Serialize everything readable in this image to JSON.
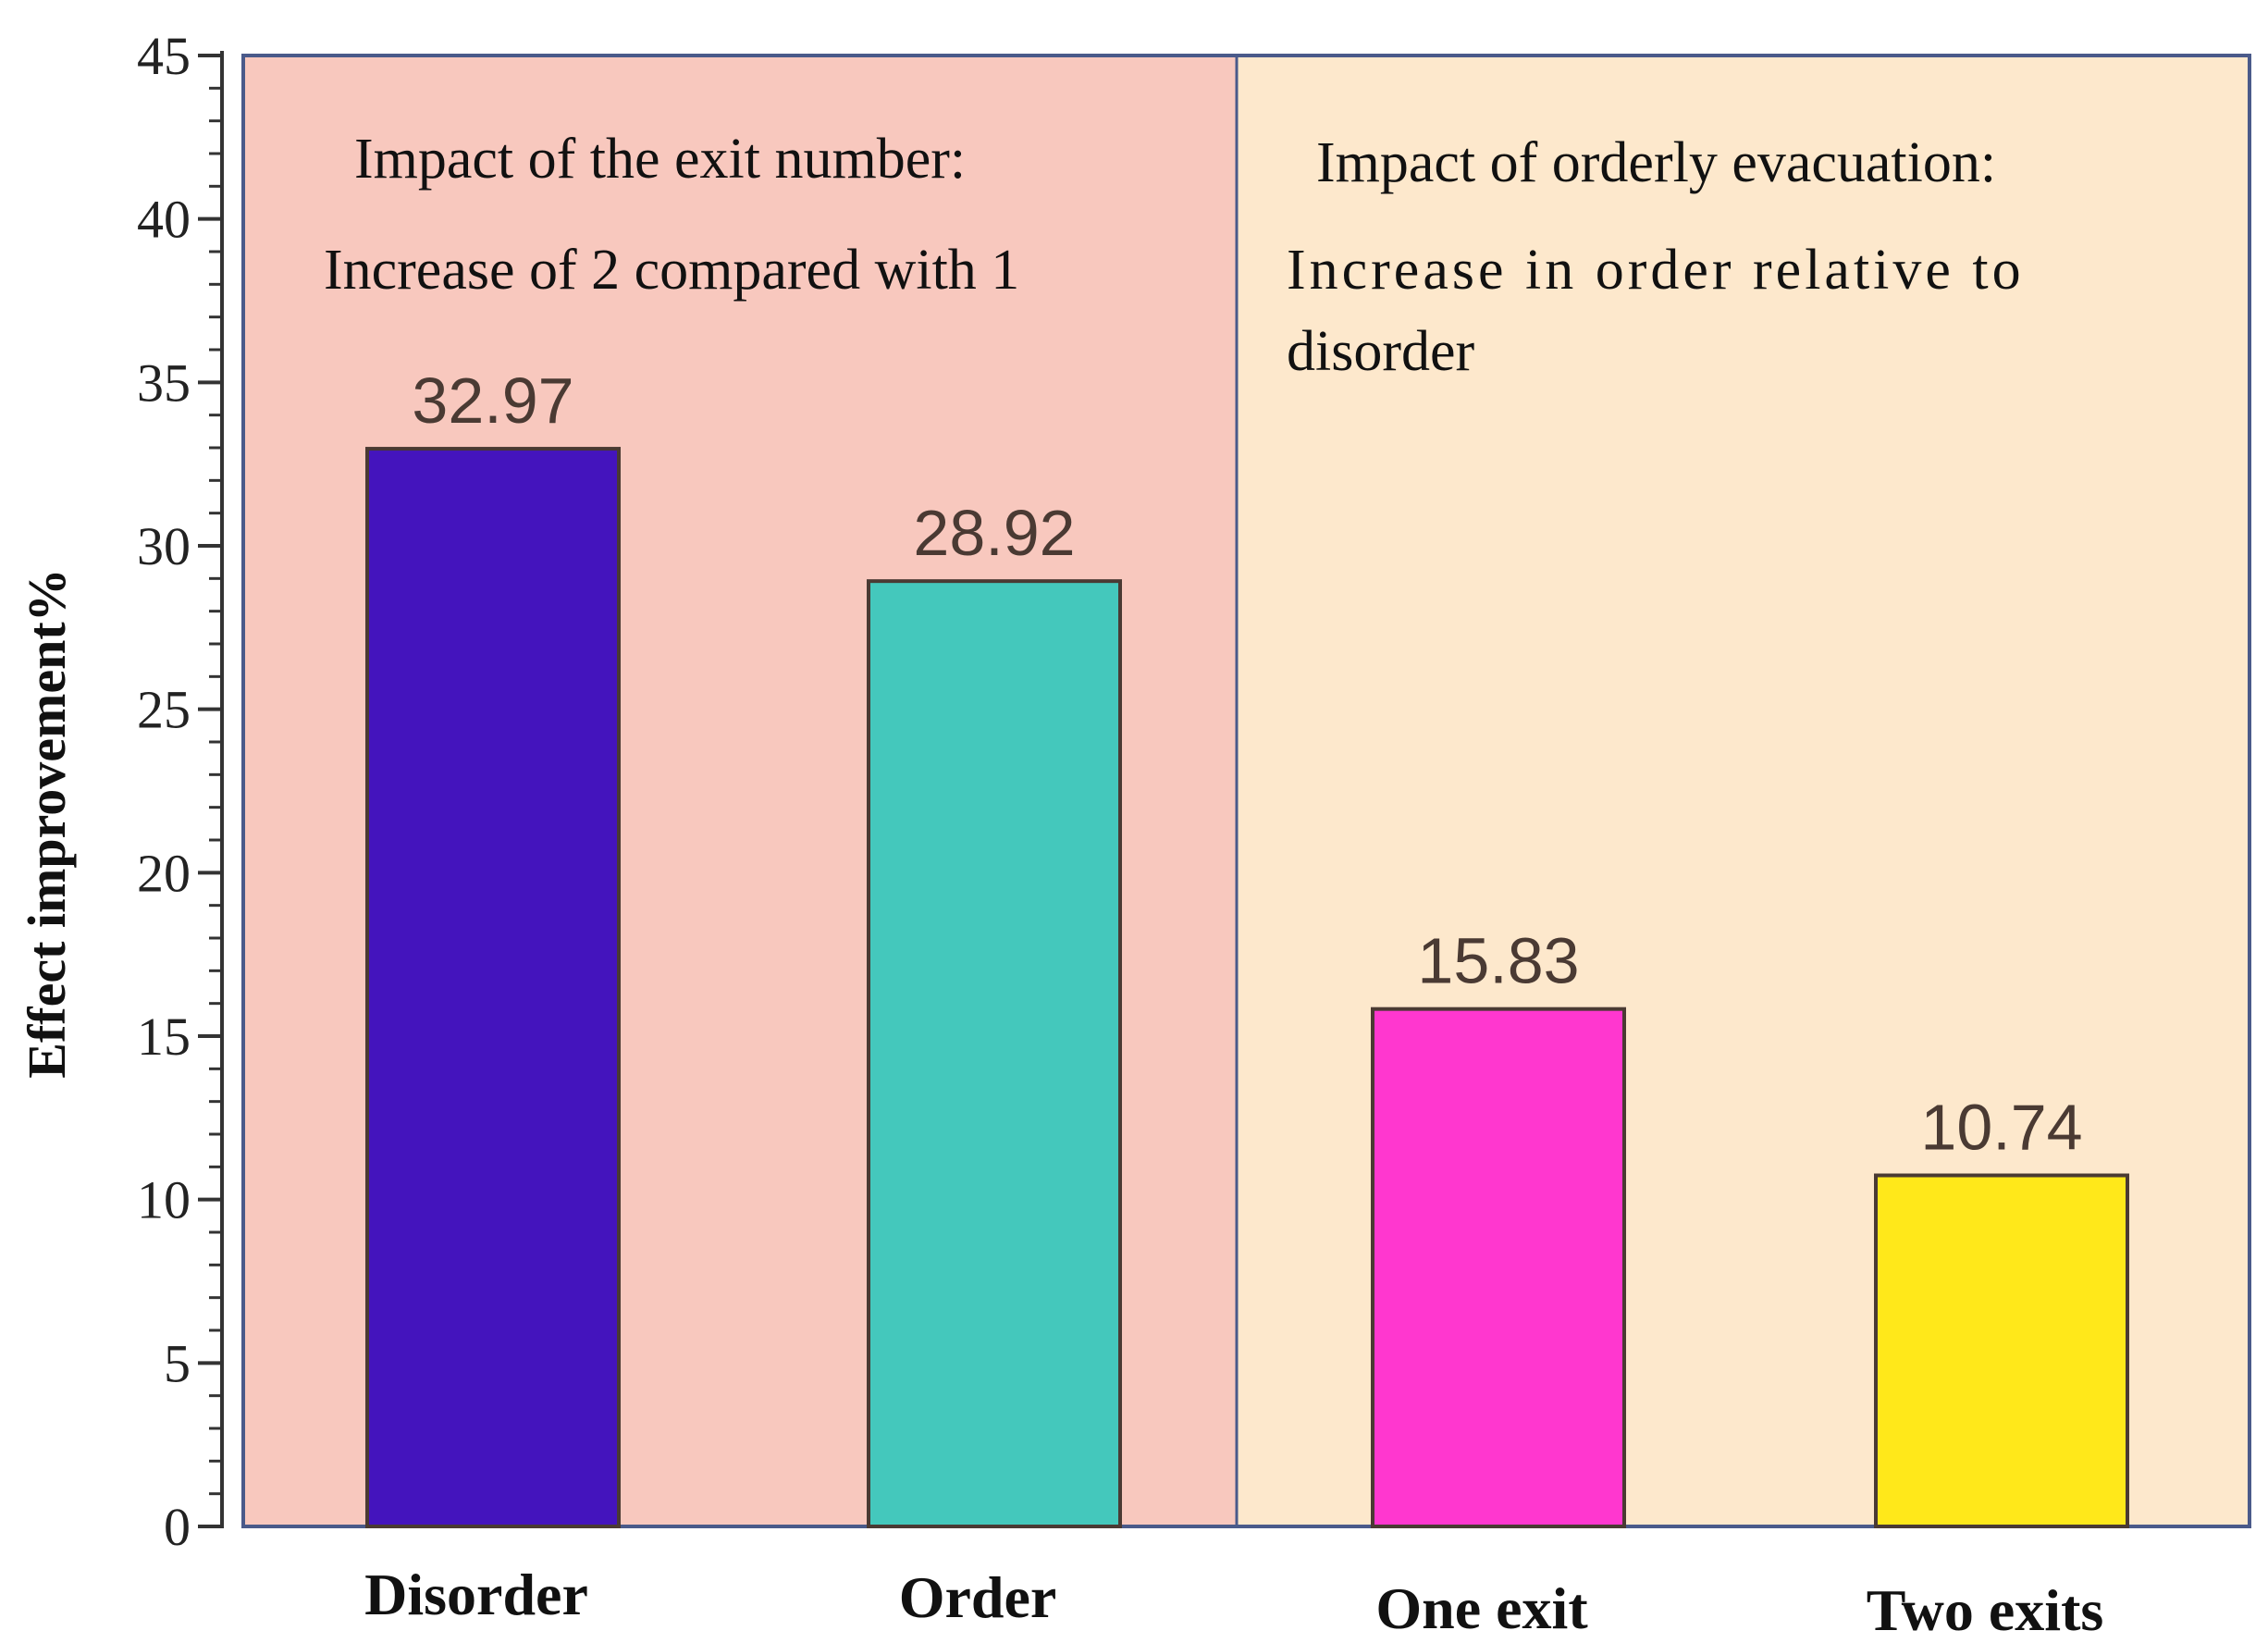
{
  "chart_data": {
    "type": "bar",
    "title": "",
    "xlabel": "",
    "ylabel": "Effect improvement%",
    "ylim": [
      0,
      45
    ],
    "yticks": [
      "0",
      "5",
      "10",
      "15",
      "20",
      "25",
      "30",
      "35",
      "40",
      "45"
    ],
    "categories": [
      "Disorder",
      "Order",
      "One exit",
      "Two exits"
    ],
    "values": [
      32.97,
      28.92,
      15.83,
      10.74
    ],
    "value_labels": [
      "32.97",
      "28.92",
      "15.83",
      "10.74"
    ],
    "bar_colors": [
      "#4414bd",
      "#44c8bc",
      "#ff37cf",
      "#ffe81a"
    ],
    "panels": [
      {
        "name": "exit-number",
        "background": "#f8c8be",
        "line1": "Impact of the exit number:",
        "line2": "Increase of 2 compared with 1",
        "line3": ""
      },
      {
        "name": "orderly-evacuation",
        "background": "#fde8cc",
        "line1": "Impact of orderly evacuation:",
        "line2": "Increase in order relative to",
        "line3": "disorder"
      }
    ]
  }
}
